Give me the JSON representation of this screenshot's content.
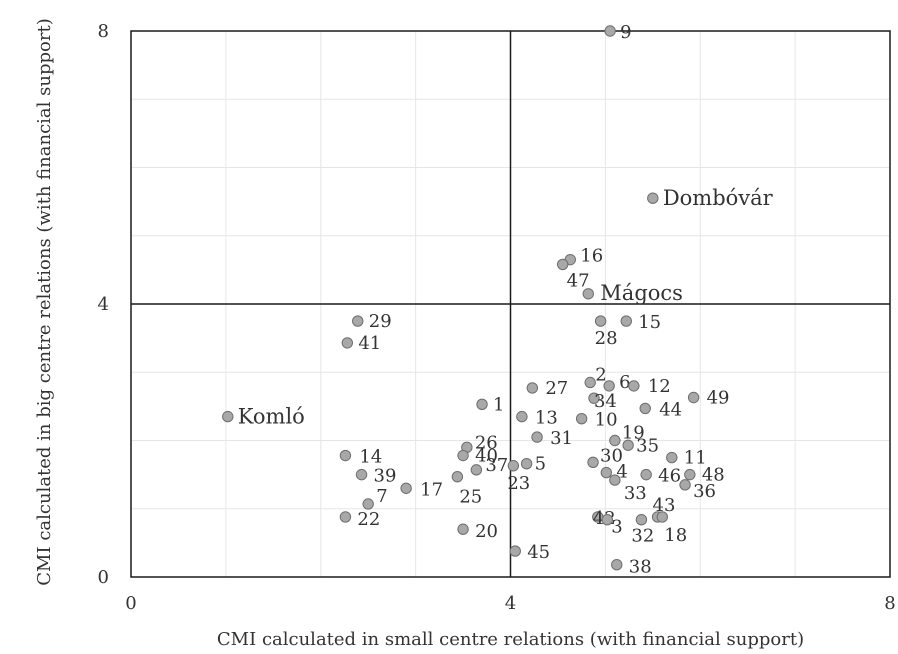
{
  "chart_data": {
    "type": "scatter",
    "xlabel": "CMI calculated in small centre relations (with financial support)",
    "ylabel": "CMI calculated in big centre relations (with financial support)",
    "xlim": [
      0,
      8
    ],
    "ylim": [
      0,
      8
    ],
    "x_ticks": [
      "0",
      "4",
      "8"
    ],
    "y_ticks": [
      "0",
      "4",
      "8"
    ],
    "reference_lines": {
      "x": 4,
      "y": 4
    },
    "grid": true,
    "marker_color": "#a8a8a8",
    "marker_edge": "#6e6e6e",
    "points": [
      {
        "label": "9",
        "x": 5.05,
        "y": 8.0
      },
      {
        "label": "Dombóvár",
        "x": 5.5,
        "y": 5.55
      },
      {
        "label": "16",
        "x": 4.63,
        "y": 4.65
      },
      {
        "label": "47",
        "x": 4.55,
        "y": 4.58
      },
      {
        "label": "Mágocs",
        "x": 4.82,
        "y": 4.15
      },
      {
        "label": "29",
        "x": 2.39,
        "y": 3.75
      },
      {
        "label": "41",
        "x": 2.28,
        "y": 3.43
      },
      {
        "label": "28",
        "x": 4.95,
        "y": 3.75
      },
      {
        "label": "15",
        "x": 5.22,
        "y": 3.75
      },
      {
        "label": "2",
        "x": 4.84,
        "y": 2.85
      },
      {
        "label": "6",
        "x": 5.04,
        "y": 2.8
      },
      {
        "label": "12",
        "x": 5.3,
        "y": 2.8
      },
      {
        "label": "27",
        "x": 4.23,
        "y": 2.77
      },
      {
        "label": "49",
        "x": 5.93,
        "y": 2.63
      },
      {
        "label": "34",
        "x": 4.88,
        "y": 2.62
      },
      {
        "label": "1",
        "x": 3.7,
        "y": 2.53
      },
      {
        "label": "44",
        "x": 5.42,
        "y": 2.47
      },
      {
        "label": "Komló",
        "x": 1.02,
        "y": 2.35
      },
      {
        "label": "13",
        "x": 4.12,
        "y": 2.35
      },
      {
        "label": "10",
        "x": 4.75,
        "y": 2.32
      },
      {
        "label": "31",
        "x": 4.28,
        "y": 2.05
      },
      {
        "label": "19",
        "x": 5.1,
        "y": 2.0
      },
      {
        "label": "35",
        "x": 5.24,
        "y": 1.93
      },
      {
        "label": "26",
        "x": 3.54,
        "y": 1.9
      },
      {
        "label": "14",
        "x": 2.26,
        "y": 1.78
      },
      {
        "label": "40",
        "x": 3.5,
        "y": 1.78
      },
      {
        "label": "11",
        "x": 5.7,
        "y": 1.75
      },
      {
        "label": "30",
        "x": 4.87,
        "y": 1.68
      },
      {
        "label": "5",
        "x": 4.17,
        "y": 1.66
      },
      {
        "label": "37",
        "x": 3.64,
        "y": 1.57
      },
      {
        "label": "23",
        "x": 4.03,
        "y": 1.63
      },
      {
        "label": "4",
        "x": 5.01,
        "y": 1.53
      },
      {
        "label": "48",
        "x": 5.89,
        "y": 1.5
      },
      {
        "label": "46",
        "x": 5.43,
        "y": 1.5
      },
      {
        "label": "39",
        "x": 2.43,
        "y": 1.5
      },
      {
        "label": "25",
        "x": 3.44,
        "y": 1.47
      },
      {
        "label": "36",
        "x": 5.84,
        "y": 1.35
      },
      {
        "label": "33",
        "x": 5.1,
        "y": 1.42
      },
      {
        "label": "17",
        "x": 2.9,
        "y": 1.3
      },
      {
        "label": "7",
        "x": 2.5,
        "y": 1.07
      },
      {
        "label": "43",
        "x": 5.55,
        "y": 0.88
      },
      {
        "label": "22",
        "x": 2.26,
        "y": 0.88
      },
      {
        "label": "42",
        "x": 4.92,
        "y": 0.88
      },
      {
        "label": "3",
        "x": 5.02,
        "y": 0.84
      },
      {
        "label": "32",
        "x": 5.38,
        "y": 0.84
      },
      {
        "label": "18",
        "x": 5.6,
        "y": 0.88
      },
      {
        "label": "20",
        "x": 3.5,
        "y": 0.7
      },
      {
        "label": "45",
        "x": 4.05,
        "y": 0.38
      },
      {
        "label": "38",
        "x": 5.12,
        "y": 0.18
      }
    ]
  }
}
